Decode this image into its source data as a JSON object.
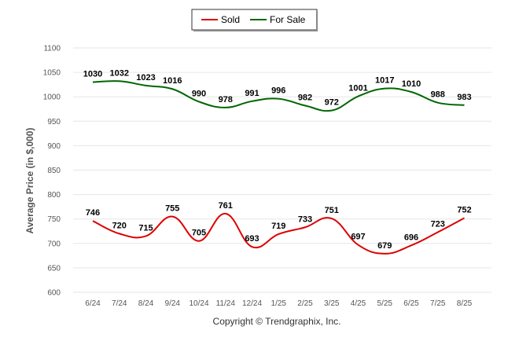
{
  "chart_data": {
    "type": "line",
    "title": "",
    "xlabel": "",
    "ylabel": "Average Price (in $,000)",
    "categories": [
      "6/24",
      "7/24",
      "8/24",
      "9/24",
      "10/24",
      "11/24",
      "12/24",
      "1/25",
      "2/25",
      "3/25",
      "4/25",
      "5/25",
      "6/25",
      "7/25",
      "8/25"
    ],
    "series": [
      {
        "name": "Sold",
        "color": "#dd0000",
        "values": [
          746,
          720,
          715,
          755,
          705,
          761,
          693,
          719,
          733,
          751,
          697,
          679,
          696,
          723,
          752
        ]
      },
      {
        "name": "For Sale",
        "color": "#006600",
        "values": [
          1030,
          1032,
          1023,
          1016,
          990,
          978,
          991,
          996,
          982,
          972,
          1001,
          1017,
          1010,
          988,
          983
        ]
      }
    ],
    "ylim": [
      600,
      1100
    ],
    "yticks": [
      600,
      650,
      700,
      750,
      800,
      850,
      900,
      950,
      1000,
      1050,
      1100
    ],
    "grid": true,
    "legend_position": "top-center"
  },
  "footer": {
    "copyright": "Copyright © Trendgraphix, Inc."
  }
}
